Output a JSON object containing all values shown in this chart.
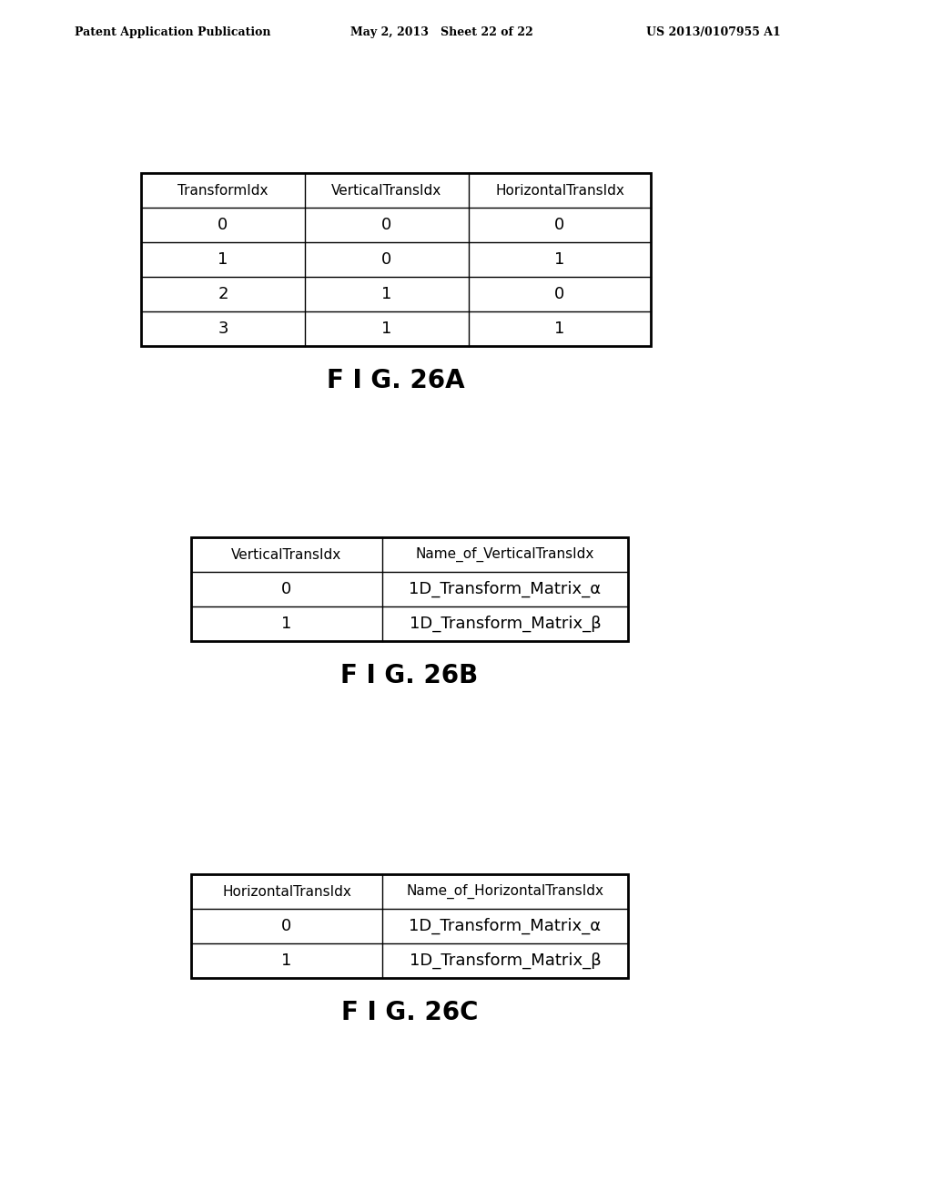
{
  "header_left": "Patent Application Publication",
  "header_mid": "May 2, 2013   Sheet 22 of 22",
  "header_right": "US 2013/0107955 A1",
  "bg_color": "#ffffff",
  "table_a_caption": "F I G. 26A",
  "table_a_headers": [
    "TransformIdx",
    "VerticalTransIdx",
    "HorizontalTransIdx"
  ],
  "table_a_rows": [
    [
      "0",
      "0",
      "0"
    ],
    [
      "1",
      "0",
      "1"
    ],
    [
      "2",
      "1",
      "0"
    ],
    [
      "3",
      "1",
      "1"
    ]
  ],
  "table_b_caption": "F I G. 26B",
  "table_b_headers": [
    "VerticalTransIdx",
    "Name_of_VerticalTransIdx"
  ],
  "table_b_rows": [
    [
      "0",
      "1D_Transform_Matrix_α"
    ],
    [
      "1",
      "1D_Transform_Matrix_β"
    ]
  ],
  "table_c_caption": "F I G. 26C",
  "table_c_headers": [
    "HorizontalTransIdx",
    "Name_of_HorizontalTransIdx"
  ],
  "table_c_rows": [
    [
      "0",
      "1D_Transform_Matrix_α"
    ],
    [
      "1",
      "1D_Transform_Matrix_β"
    ]
  ],
  "table_line_color": "#000000",
  "cell_text_color": "#000000",
  "header_font_size": 9.0,
  "cell_font_size": 12,
  "header_cell_font_size": 11,
  "caption_font_size": 20
}
